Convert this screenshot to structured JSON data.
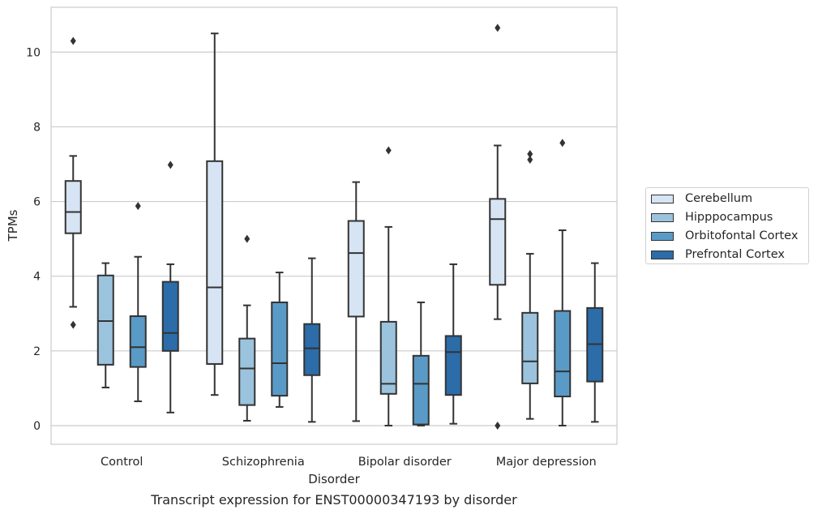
{
  "chart_data": {
    "type": "box",
    "title": "",
    "caption": "Transcript expression for ENST00000347193 by disorder",
    "xlabel": "Disorder",
    "ylabel": "TPMs",
    "ylim": [
      -0.5,
      11.2
    ],
    "yticks": [
      0,
      2,
      4,
      6,
      8,
      10
    ],
    "grid": "horizontal",
    "legend_position": "right",
    "categories": [
      "Control",
      "Schizophrenia",
      "Bipolar disorder",
      "Major depression"
    ],
    "series": [
      {
        "name": "Cerebellum",
        "color": "#d6e4f3",
        "boxes": [
          {
            "whislo": 3.18,
            "q1": 5.15,
            "med": 5.72,
            "q3": 6.55,
            "whishi": 7.22,
            "fliers": [
              2.7,
              10.3
            ]
          },
          {
            "whislo": 0.82,
            "q1": 1.65,
            "med": 3.7,
            "q3": 7.08,
            "whishi": 10.5,
            "fliers": []
          },
          {
            "whislo": 0.12,
            "q1": 2.92,
            "med": 4.62,
            "q3": 5.48,
            "whishi": 6.52,
            "fliers": []
          },
          {
            "whislo": 2.85,
            "q1": 3.77,
            "med": 5.53,
            "q3": 6.07,
            "whishi": 7.5,
            "fliers": [
              0.0,
              10.65
            ]
          }
        ]
      },
      {
        "name": "Hipppocampus",
        "color": "#9bc3dd",
        "boxes": [
          {
            "whislo": 1.02,
            "q1": 1.63,
            "med": 2.8,
            "q3": 4.02,
            "whishi": 4.35,
            "fliers": []
          },
          {
            "whislo": 0.13,
            "q1": 0.55,
            "med": 1.53,
            "q3": 2.33,
            "whishi": 3.22,
            "fliers": [
              5.0
            ]
          },
          {
            "whislo": 0.0,
            "q1": 0.85,
            "med": 1.12,
            "q3": 2.78,
            "whishi": 5.32,
            "fliers": [
              7.37
            ]
          },
          {
            "whislo": 0.18,
            "q1": 1.13,
            "med": 1.72,
            "q3": 3.02,
            "whishi": 4.6,
            "fliers": [
              7.12,
              7.27
            ]
          }
        ]
      },
      {
        "name": "Orbitofontal Cortex",
        "color": "#5a9ac6",
        "boxes": [
          {
            "whislo": 0.65,
            "q1": 1.57,
            "med": 2.1,
            "q3": 2.93,
            "whishi": 4.52,
            "fliers": [
              5.88
            ]
          },
          {
            "whislo": 0.5,
            "q1": 0.8,
            "med": 1.67,
            "q3": 3.3,
            "whishi": 4.1,
            "fliers": []
          },
          {
            "whislo": 0.0,
            "q1": 0.03,
            "med": 1.12,
            "q3": 1.87,
            "whishi": 3.3,
            "fliers": []
          },
          {
            "whislo": 0.0,
            "q1": 0.78,
            "med": 1.45,
            "q3": 3.07,
            "whishi": 5.23,
            "fliers": [
              7.57
            ]
          }
        ]
      },
      {
        "name": "Prefrontal Cortex",
        "color": "#2b6ca9",
        "boxes": [
          {
            "whislo": 0.35,
            "q1": 2.0,
            "med": 2.48,
            "q3": 3.85,
            "whishi": 4.32,
            "fliers": [
              6.98
            ]
          },
          {
            "whislo": 0.1,
            "q1": 1.35,
            "med": 2.07,
            "q3": 2.72,
            "whishi": 4.48,
            "fliers": []
          },
          {
            "whislo": 0.05,
            "q1": 0.82,
            "med": 1.97,
            "q3": 2.4,
            "whishi": 4.32,
            "fliers": []
          },
          {
            "whislo": 0.1,
            "q1": 1.18,
            "med": 2.18,
            "q3": 3.15,
            "whishi": 4.35,
            "fliers": []
          }
        ]
      }
    ]
  }
}
